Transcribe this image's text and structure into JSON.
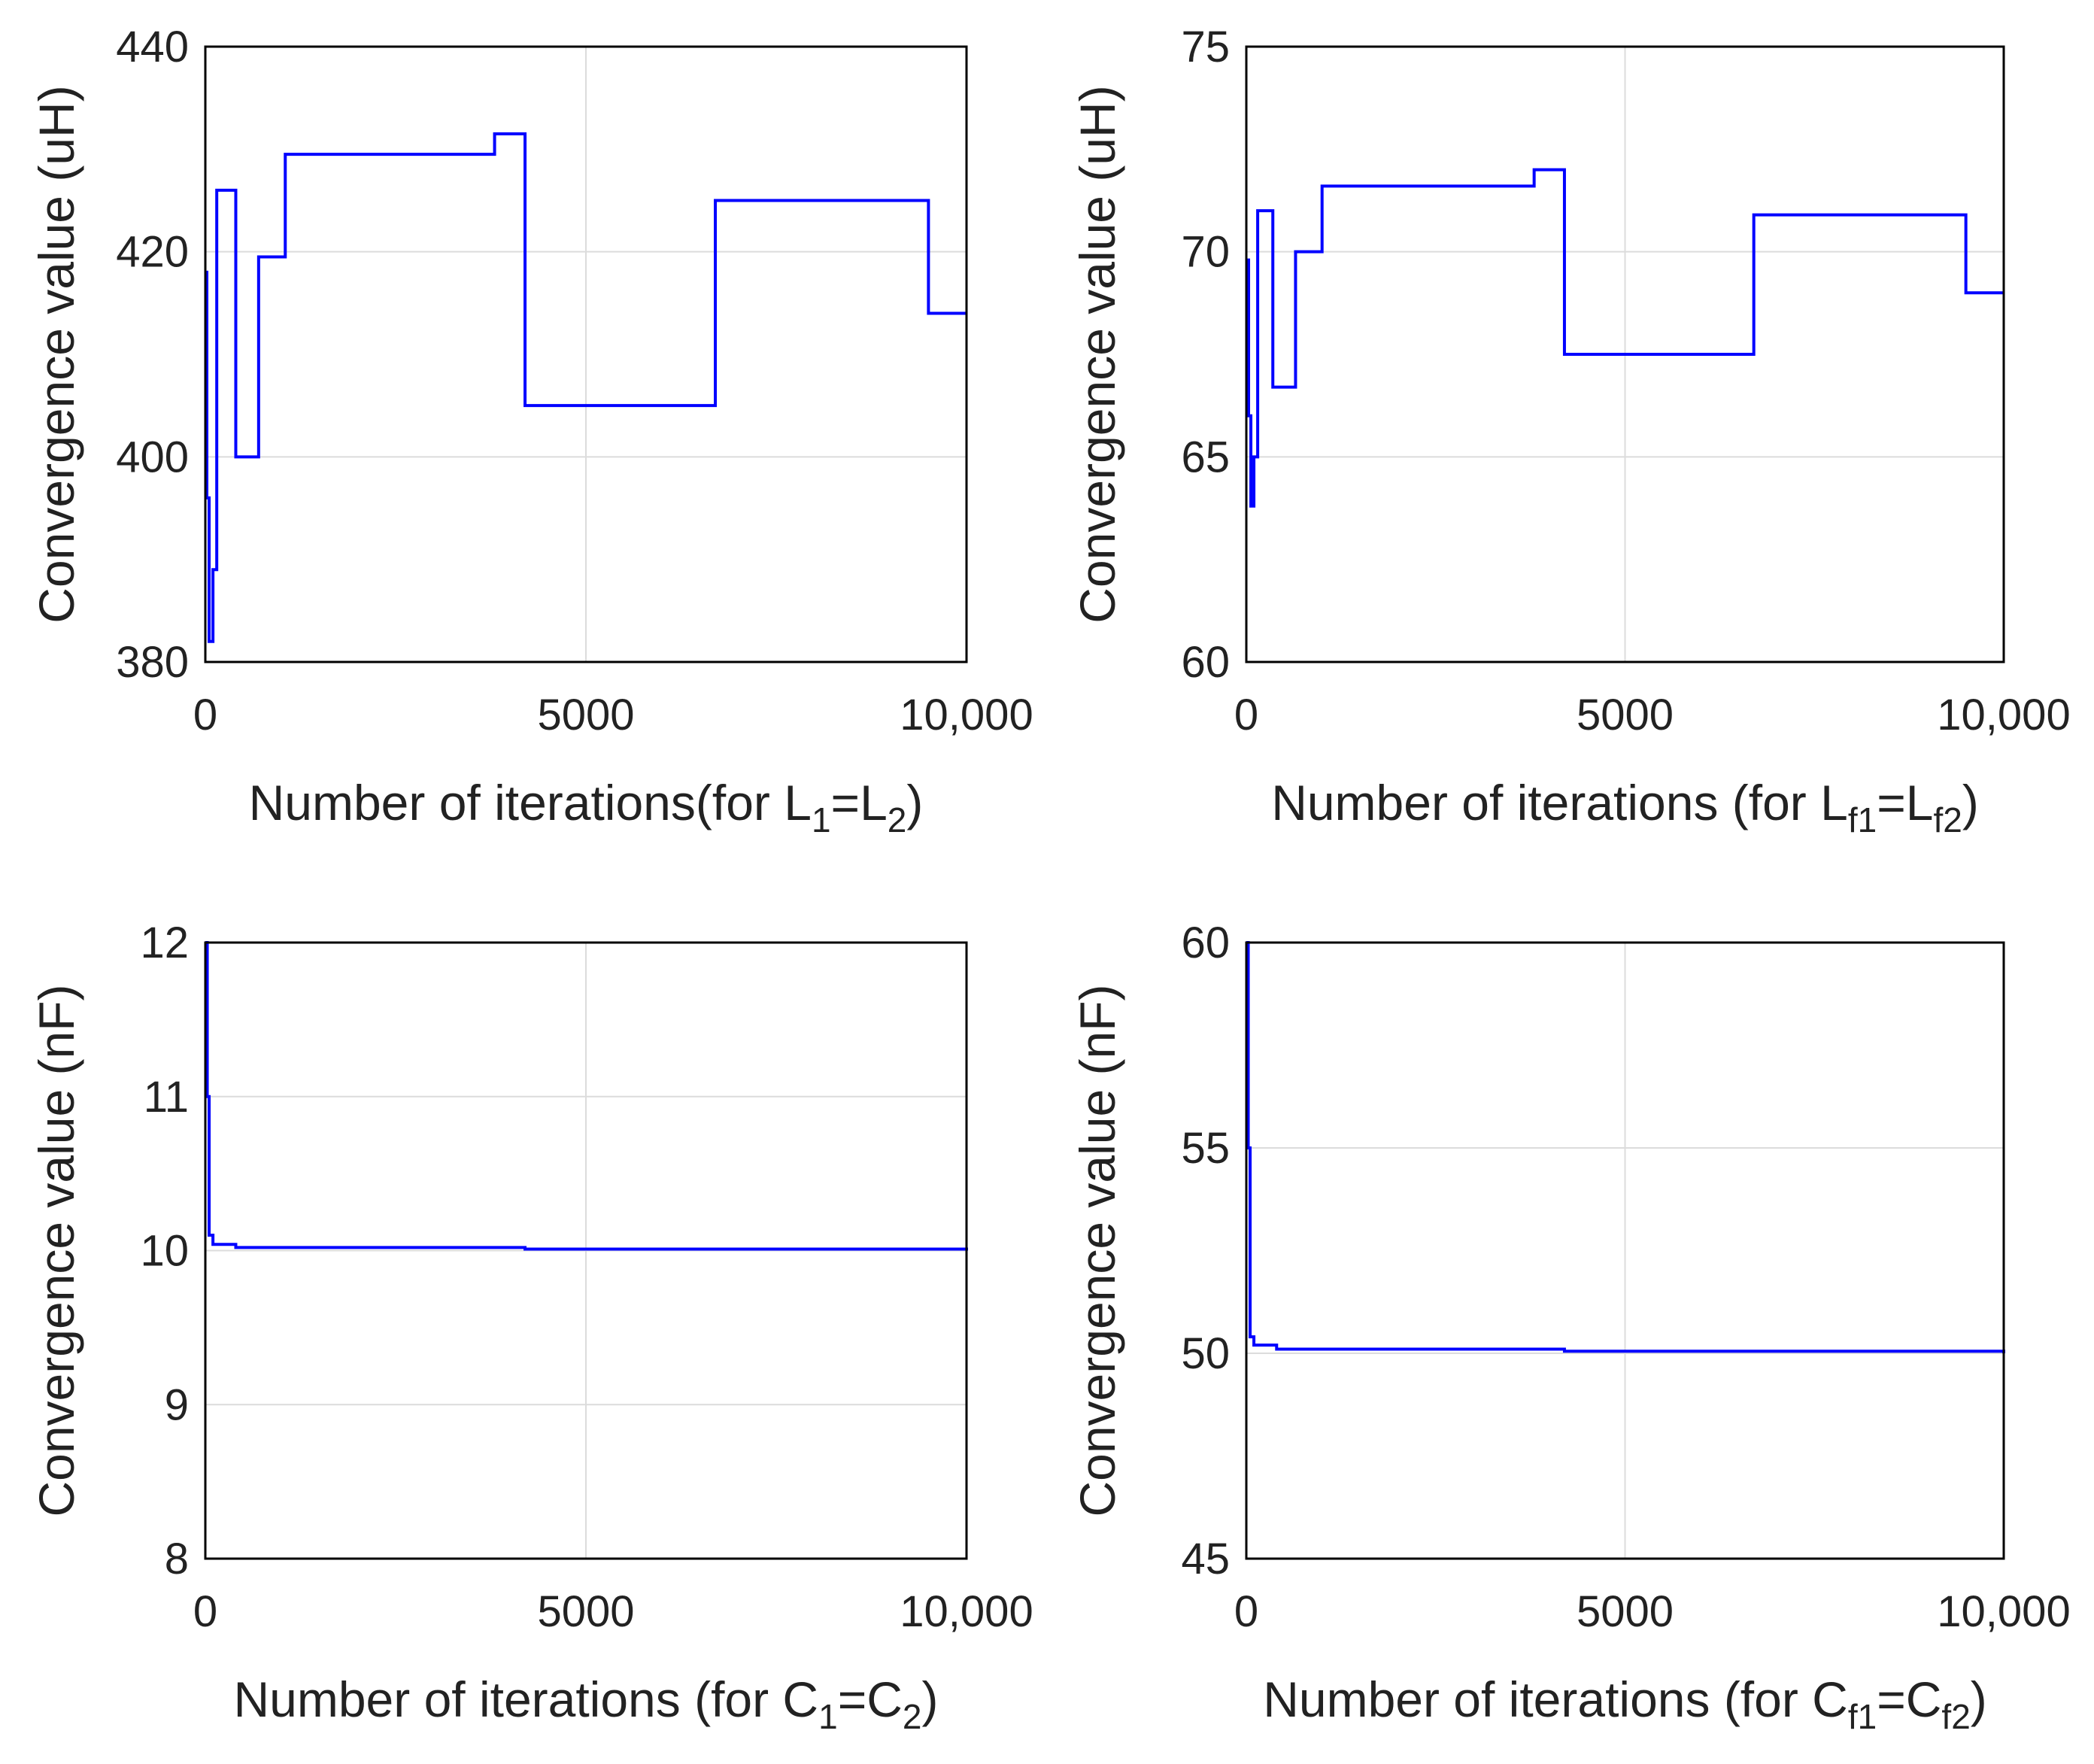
{
  "chart_data": [
    {
      "type": "line",
      "panel": "top-left",
      "xlabel": "Number of iterations(for L1=L2)",
      "xlabel_parts": [
        "Number of iterations(for L",
        "1",
        "=L",
        "2",
        ")"
      ],
      "ylabel": "Convergence value (uH)",
      "xlim": [
        0,
        10000
      ],
      "ylim": [
        380,
        440
      ],
      "xticks": [
        0,
        5000,
        10000
      ],
      "xtick_labels": [
        "0",
        "5000",
        "10,000"
      ],
      "yticks": [
        380,
        400,
        420,
        440
      ],
      "ytick_labels": [
        "380",
        "400",
        "420",
        "440"
      ],
      "grid": true,
      "series": [
        {
          "name": "Convergence",
          "color": "#0000ff",
          "step": true,
          "x": [
            0,
            20,
            50,
            100,
            150,
            400,
            700,
            1050,
            3800,
            4200,
            6700,
            9500,
            10000
          ],
          "values": [
            418,
            396,
            382,
            389,
            426,
            400,
            419.5,
            429.5,
            431.5,
            405,
            425,
            414,
            414
          ]
        }
      ]
    },
    {
      "type": "line",
      "panel": "top-right",
      "xlabel": "Number of iterations (for Lf1=Lf2)",
      "xlabel_parts": [
        "Number of iterations (for L",
        "f1",
        "=L",
        "f2",
        ")"
      ],
      "ylabel": "Convergence value (uH)",
      "xlim": [
        0,
        10000
      ],
      "ylim": [
        60,
        75
      ],
      "xticks": [
        0,
        5000,
        10000
      ],
      "xtick_labels": [
        "0",
        "5000",
        "10,000"
      ],
      "yticks": [
        60,
        65,
        70,
        75
      ],
      "ytick_labels": [
        "60",
        "65",
        "70",
        "75"
      ],
      "grid": true,
      "series": [
        {
          "name": "Convergence",
          "color": "#0000ff",
          "step": true,
          "x": [
            0,
            30,
            60,
            100,
            150,
            350,
            650,
            1000,
            3800,
            4200,
            6700,
            9500,
            10000
          ],
          "values": [
            69.8,
            66,
            63.8,
            65,
            71,
            66.7,
            70,
            71.6,
            72,
            67.5,
            70.9,
            69,
            69
          ]
        }
      ]
    },
    {
      "type": "line",
      "panel": "bottom-left",
      "xlabel": "Number of iterations (for C1=C2)",
      "xlabel_parts": [
        "Number of iterations (for C",
        "1",
        "=C",
        "2",
        ")"
      ],
      "ylabel": "Convergence value (nF)",
      "xlim": [
        0,
        10000
      ],
      "ylim": [
        8,
        12
      ],
      "xticks": [
        0,
        5000,
        10000
      ],
      "xtick_labels": [
        "0",
        "5000",
        "10,000"
      ],
      "yticks": [
        8,
        9,
        10,
        11,
        12
      ],
      "ytick_labels": [
        "8",
        "9",
        "10",
        "11",
        "12"
      ],
      "grid": true,
      "series": [
        {
          "name": "Convergence",
          "color": "#0000ff",
          "step": true,
          "x": [
            0,
            25,
            50,
            100,
            400,
            4200,
            10000
          ],
          "values": [
            12,
            11,
            10.1,
            10.04,
            10.02,
            10.01,
            10.0
          ]
        }
      ]
    },
    {
      "type": "line",
      "panel": "bottom-right",
      "xlabel": "Number of iterations (for Cf1=Cf2)",
      "xlabel_parts": [
        "Number of iterations (for C",
        "f1",
        "=C",
        "f2",
        ")"
      ],
      "ylabel": "Convergence value (nF)",
      "xlim": [
        0,
        10000
      ],
      "ylim": [
        45,
        60
      ],
      "xticks": [
        0,
        5000,
        10000
      ],
      "xtick_labels": [
        "0",
        "5000",
        "10,000"
      ],
      "yticks": [
        45,
        50,
        55,
        60
      ],
      "ytick_labels": [
        "45",
        "50",
        "55",
        "60"
      ],
      "grid": true,
      "series": [
        {
          "name": "Convergence",
          "color": "#0000ff",
          "step": true,
          "x": [
            0,
            25,
            50,
            100,
            400,
            4200,
            10000
          ],
          "values": [
            60,
            55,
            50.4,
            50.2,
            50.1,
            50.05,
            50.0
          ]
        }
      ]
    }
  ]
}
